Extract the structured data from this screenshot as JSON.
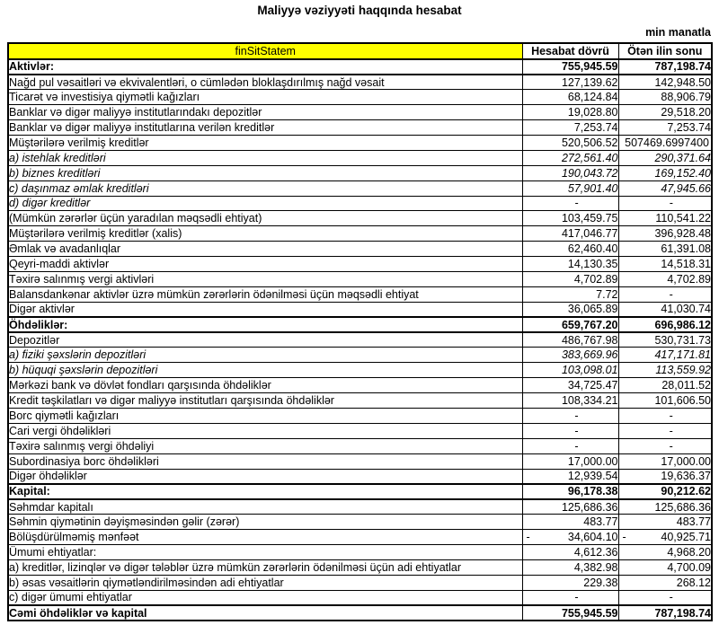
{
  "title": "Maliyyə vəziyyəti haqqında hesabat",
  "unit_note": "min manatla",
  "header_bg_color": "#ffff00",
  "table": {
    "header": {
      "col1": "finSitStatem",
      "col2": "Hesabat dövrü",
      "col3": "Ötən ilin sonu"
    },
    "rows": [
      {
        "label": "Aktivlər:",
        "v1": "755,945.59",
        "v2": "787,198.74",
        "style": "section"
      },
      {
        "label": "Nağd pul vəsaitləri və  ekvivalentləri, o cümlədən bloklaşdırılmış nağd vəsait",
        "v1": "127,139.62",
        "v2": "142,948.50",
        "style": "item"
      },
      {
        "label": "Ticarət və investisiya qiymətli kağızları",
        "v1": "68,124.84",
        "v2": "88,906.79",
        "style": "item"
      },
      {
        "label": "Banklar və digər maliyyə institutlarındakı depozitlər",
        "v1": "19,028.80",
        "v2": "29,518.20",
        "style": "item"
      },
      {
        "label": "Banklar və digər maliyyə institutlarına verilən kreditlər",
        "v1": "7,253.74",
        "v2": "7,253.74",
        "style": "item"
      },
      {
        "label": "Müştərilərə verilmiş kreditlər",
        "v1": "520,506.52",
        "v2": "507469.6997400",
        "style": "item"
      },
      {
        "label": "a) istehlak kreditləri",
        "v1": "272,561.40",
        "v2": "290,371.64",
        "style": "sub"
      },
      {
        "label": "b) biznes kreditləri",
        "v1": "190,043.72",
        "v2": "169,152.40",
        "style": "sub"
      },
      {
        "label": "c) daşınmaz əmlak kreditləri",
        "v1": "57,901.40",
        "v2": "47,945.66",
        "style": "sub"
      },
      {
        "label": "d) digər kreditlər",
        "v1": "-",
        "v2": "-",
        "style": "sub"
      },
      {
        "label": "(Mümkün zərərlər üçün yaradılan məqsədli ehtiyat)",
        "v1": "103,459.75",
        "v2": "110,541.22",
        "style": "item"
      },
      {
        "label": "Müştərilərə verilmiş kreditlər (xalis)",
        "v1": "417,046.77",
        "v2": "396,928.48",
        "style": "item"
      },
      {
        "label": "Əmlak və avadanlıqlar",
        "v1": "62,460.40",
        "v2": "61,391.08",
        "style": "item"
      },
      {
        "label": "Qeyri-maddi aktivlər",
        "v1": "14,130.35",
        "v2": "14,518.31",
        "style": "item"
      },
      {
        "label": "Təxirə salınmış vergi aktivləri",
        "v1": "4,702.89",
        "v2": "4,702.89",
        "style": "item"
      },
      {
        "label": "Balansdankənar aktivlər üzrə mümkün zərərlərin ödənilməsi üçün məqsədli ehtiyat",
        "v1": "7.72",
        "v2": "-",
        "style": "item"
      },
      {
        "label": "Digər aktivlər",
        "v1": "36,065.89",
        "v2": "41,030.74",
        "style": "item"
      },
      {
        "label": "Öhdəliklər:",
        "v1": "659,767.20",
        "v2": "696,986.12",
        "style": "section"
      },
      {
        "label": "Depozitlər",
        "v1": "486,767.98",
        "v2": "530,731.73",
        "style": "item"
      },
      {
        "label": "a) fiziki şəxslərin depozitləri",
        "v1": "383,669.96",
        "v2": "417,171.81",
        "style": "sub"
      },
      {
        "label": "b) hüquqi şəxslərin depozitləri",
        "v1": "103,098.01",
        "v2": "113,559.92",
        "style": "sub"
      },
      {
        "label": "Mərkəzi bank və dövlət fondları qarşısında öhdəliklər",
        "v1": "34,725.47",
        "v2": "28,011.52",
        "style": "item"
      },
      {
        "label": "Kredit təşkilatları və digər maliyyə institutları qarşısında öhdəliklər",
        "v1": "108,334.21",
        "v2": "101,606.50",
        "style": "item"
      },
      {
        "label": "Borc qiymətli kağızları",
        "v1": "-",
        "v2": "-",
        "style": "item"
      },
      {
        "label": "Cari vergi öhdəlikləri",
        "v1": "-",
        "v2": "-",
        "style": "item"
      },
      {
        "label": "Təxirə salınmış vergi öhdəliyi",
        "v1": "-",
        "v2": "-",
        "style": "item"
      },
      {
        "label": "Subordinasiya borc öhdəlikləri",
        "v1": "17,000.00",
        "v2": "17,000.00",
        "style": "item"
      },
      {
        "label": "Digər öhdəliklər",
        "v1": "12,939.54",
        "v2": "19,636.37",
        "style": "item"
      },
      {
        "label": "Kapital:",
        "v1": "96,178.38",
        "v2": "90,212.62",
        "style": "section"
      },
      {
        "label": "Səhmdar kapitalı",
        "v1": "125,686.36",
        "v2": "125,686.36",
        "style": "item"
      },
      {
        "label": "Səhmin qiymətinin dəyişməsindən gəlir (zərər)",
        "v1": "483.77",
        "v2": "483.77",
        "style": "item"
      },
      {
        "label": "Bölüşdürülməmiş mənfəət",
        "v1": "- 34,604.10",
        "v2": "- 40,925.71",
        "style": "item"
      },
      {
        "label": "Ümumi ehtiyatlar:",
        "v1": "4,612.36",
        "v2": "4,968.20",
        "style": "item"
      },
      {
        "label": "a) kreditlər, lizinqlər və digər tələblər üzrə mümkün zərərlərin ödənilməsi üçün adi ehtiyatlar",
        "v1": "4,382.98",
        "v2": "4,700.09",
        "style": "item"
      },
      {
        "label": "b) əsas vəsaitlərin qiymətləndirilməsindən adi ehtiyatlar",
        "v1": "229.38",
        "v2": "268.12",
        "style": "item"
      },
      {
        "label": "c) digər ümumi ehtiyatlar",
        "v1": "-",
        "v2": "-",
        "style": "item"
      },
      {
        "label": "Cəmi öhdəliklər və kapital",
        "v1": "755,945.59",
        "v2": "787,198.74",
        "style": "section"
      }
    ]
  }
}
